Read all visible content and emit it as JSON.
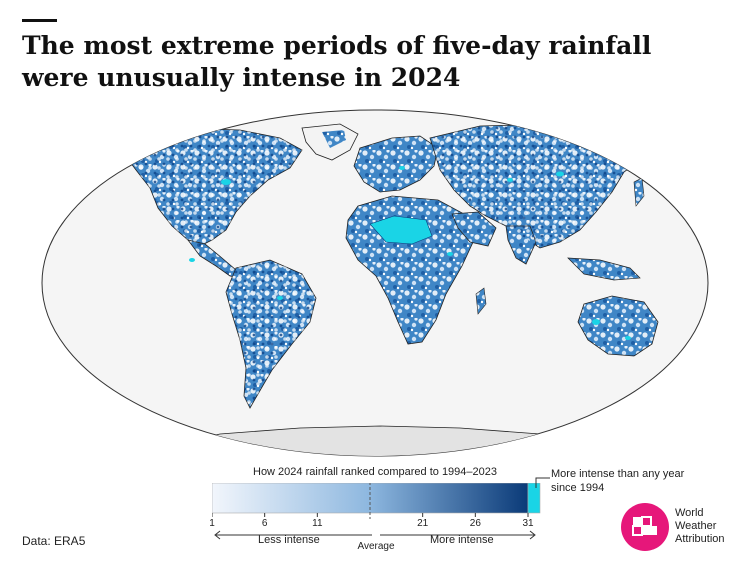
{
  "header": {
    "title": "The most extreme periods of five-day rainfall were unusually intense in 2024"
  },
  "colors": {
    "rank_low": "#f2f6fc",
    "rank_high": "#0a3a78",
    "record": "#1ad4e6",
    "land_no_data": "#f3f3f3",
    "antarctica": "#e3e3e3",
    "coastline": "#222222"
  },
  "legend": {
    "title": "How 2024 rainfall ranked compared to 1994–2023",
    "ticks": [
      "1",
      "6",
      "11",
      "21",
      "26",
      "31"
    ],
    "tick_values": [
      1,
      6,
      11,
      21,
      26,
      31
    ],
    "range": [
      1,
      31
    ],
    "average_rank": 16,
    "less_label": "Less intense",
    "average_label": "Average",
    "more_label": "More intense",
    "record_label": "More intense than any year since 1994"
  },
  "source": "Data: ERA5",
  "brand": {
    "name_line1": "World",
    "name_line2": "Weather",
    "name_line3": "Attribution",
    "logo_icon": "wwa-logo-icon",
    "logo_color": "#e6177a"
  }
}
